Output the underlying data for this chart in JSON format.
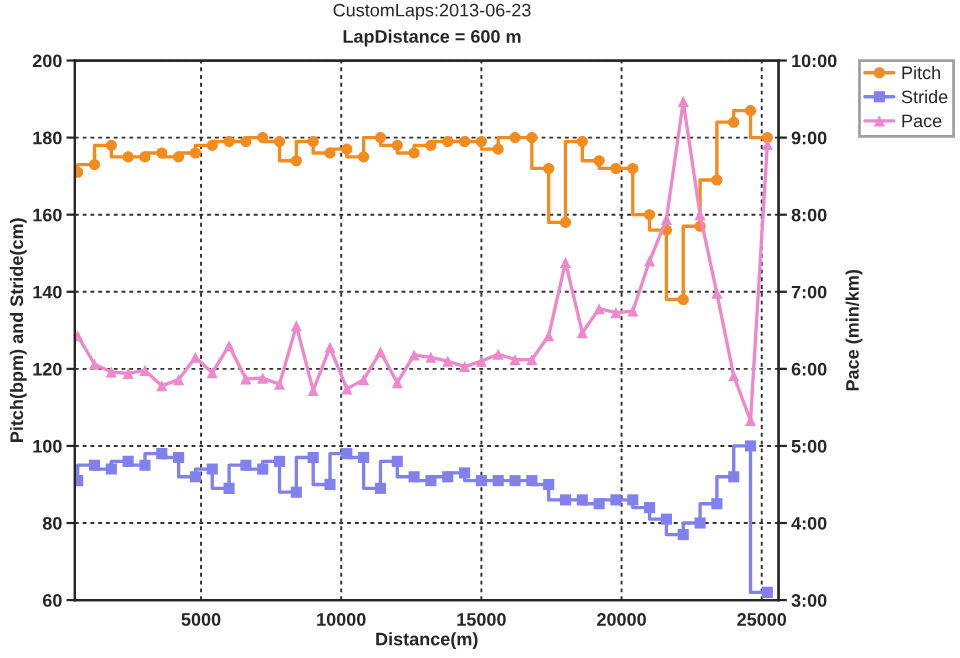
{
  "chart_data": {
    "type": "line",
    "title": "CustomLaps:2013-06-23",
    "subtitle": "LapDistance = 600 m",
    "xlabel": "Distance(m)",
    "ylabel": "Pitch(bpm) and Stride(cm)",
    "y2label": "Pace (min/km)",
    "x": [
      600,
      1200,
      1800,
      2400,
      3000,
      3600,
      4200,
      4800,
      5400,
      6000,
      6600,
      7200,
      7800,
      8400,
      9000,
      9600,
      10200,
      10800,
      11400,
      12000,
      12600,
      13200,
      13800,
      14400,
      15000,
      15600,
      16200,
      16800,
      17400,
      18000,
      18600,
      19200,
      19800,
      20400,
      21000,
      21600,
      22200,
      22800,
      23400,
      24000,
      24600,
      25200
    ],
    "series": [
      {
        "name": "Pitch",
        "type": "step",
        "marker": "circle",
        "color": "#f28c1e",
        "values": [
          171,
          173,
          178,
          175,
          175,
          176,
          175,
          176,
          178,
          179,
          179,
          180,
          179,
          174,
          179,
          176,
          177,
          175,
          180,
          178,
          176,
          178,
          179,
          179,
          179,
          177,
          180,
          180,
          172,
          158,
          179,
          174,
          172,
          172,
          160,
          156,
          138,
          157,
          169,
          184,
          187,
          180
        ]
      },
      {
        "name": "Stride",
        "type": "step",
        "marker": "square",
        "color": "#8080ee",
        "values": [
          91,
          95,
          94,
          96,
          95,
          98,
          97,
          92,
          94,
          89,
          95,
          94,
          96,
          88,
          97,
          90,
          98,
          97,
          89,
          96,
          92,
          91,
          92,
          93,
          91,
          91,
          91,
          91,
          90,
          86,
          86,
          85,
          86,
          86,
          84,
          81,
          77,
          80,
          85,
          92,
          100,
          62
        ]
      },
      {
        "name": "Pace",
        "marker": "triangle",
        "axis": "y2",
        "color": "#ee88cc",
        "values": [
          6.43,
          6.06,
          5.96,
          5.94,
          5.98,
          5.78,
          5.86,
          6.15,
          5.95,
          6.3,
          5.87,
          5.88,
          5.8,
          6.56,
          5.72,
          6.28,
          5.74,
          5.86,
          6.22,
          5.82,
          6.18,
          6.15,
          6.1,
          6.03,
          6.1,
          6.19,
          6.12,
          6.12,
          6.43,
          7.38,
          6.47,
          6.78,
          6.73,
          6.75,
          7.4,
          7.94,
          9.47,
          8.0,
          6.98,
          5.91,
          5.33,
          8.91
        ]
      }
    ],
    "xlim": [
      500,
      25600
    ],
    "xticks": [
      5000,
      10000,
      15000,
      20000,
      25000
    ],
    "ylim": [
      60,
      200
    ],
    "yticks": [
      60,
      80,
      100,
      120,
      140,
      160,
      180,
      200
    ],
    "y2lim": [
      3,
      10
    ],
    "y2ticks": [
      {
        "value": 3,
        "label": "3:00"
      },
      {
        "value": 4,
        "label": "4:00"
      },
      {
        "value": 5,
        "label": "5:00"
      },
      {
        "value": 6,
        "label": "6:00"
      },
      {
        "value": 7,
        "label": "7:00"
      },
      {
        "value": 8,
        "label": "8:00"
      },
      {
        "value": 9,
        "label": "9:00"
      },
      {
        "value": 10,
        "label": "10:00"
      }
    ],
    "grid": true,
    "legend": "top right"
  }
}
